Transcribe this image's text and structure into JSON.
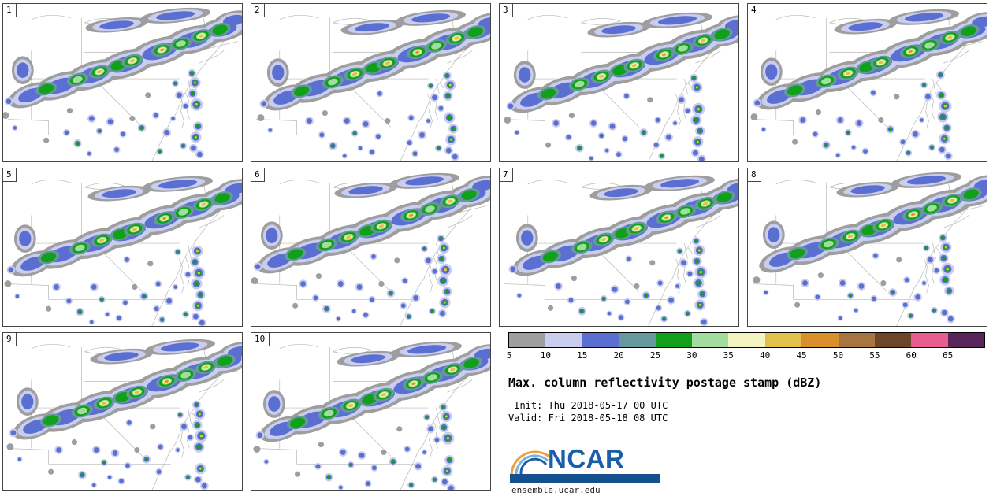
{
  "panels": [
    {
      "id": "1"
    },
    {
      "id": "2"
    },
    {
      "id": "3"
    },
    {
      "id": "4"
    },
    {
      "id": "5"
    },
    {
      "id": "6"
    },
    {
      "id": "7"
    },
    {
      "id": "8"
    },
    {
      "id": "9"
    },
    {
      "id": "10"
    }
  ],
  "colorbar": {
    "ticks": [
      "5",
      "10",
      "15",
      "20",
      "25",
      "30",
      "35",
      "40",
      "45",
      "50",
      "55",
      "60",
      "65"
    ],
    "colors": [
      "#9e9e9e",
      "#c9cdee",
      "#5a6fd1",
      "#67999c",
      "#11a019",
      "#a2dc9e",
      "#f4f4c0",
      "#e3c04b",
      "#d98f2b",
      "#a8743f",
      "#6b4627",
      "#e75d8f",
      "#59265c"
    ]
  },
  "caption": {
    "title": "Max. column reflectivity postage stamp (dBZ)",
    "init_line": " Init: Thu 2018-05-17 00 UTC",
    "valid_line": "Valid: Fri 2018-05-18 08 UTC"
  },
  "branding": {
    "logo_text": "NCAR",
    "site_url": "ensemble.ucar.edu",
    "logo_color": "#1a5dab",
    "bar_color": "#15518f"
  }
}
